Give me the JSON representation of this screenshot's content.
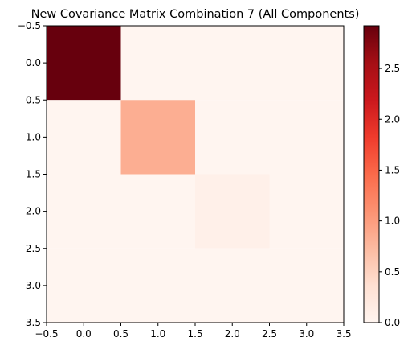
{
  "chart_data": {
    "type": "heatmap",
    "title": "New Covariance Matrix Combination 7 (All Components)",
    "xlabel": "",
    "ylabel": "",
    "colormap": "Reds",
    "matrix": [
      [
        2.92,
        0.0,
        0.0,
        0.0
      ],
      [
        0.0,
        0.85,
        0.0,
        0.0
      ],
      [
        0.0,
        0.0,
        0.09,
        0.0
      ],
      [
        0.0,
        0.0,
        0.0,
        0.0
      ]
    ],
    "xlim": [
      -0.5,
      3.5
    ],
    "ylim": [
      3.5,
      -0.5
    ],
    "x_ticks": [
      "−0.5",
      "0.0",
      "0.5",
      "1.0",
      "1.5",
      "2.0",
      "2.5",
      "3.0",
      "3.5"
    ],
    "y_ticks": [
      "−0.5",
      "0.0",
      "0.5",
      "1.0",
      "1.5",
      "2.0",
      "2.5",
      "3.0",
      "3.5"
    ],
    "colorbar": {
      "vmin": 0.0,
      "vmax": 2.92,
      "ticks": [
        "0.0",
        "0.5",
        "1.0",
        "1.5",
        "2.0",
        "2.5"
      ],
      "tick_values": [
        0.0,
        0.5,
        1.0,
        1.5,
        2.0,
        2.5
      ]
    },
    "grid": false
  }
}
